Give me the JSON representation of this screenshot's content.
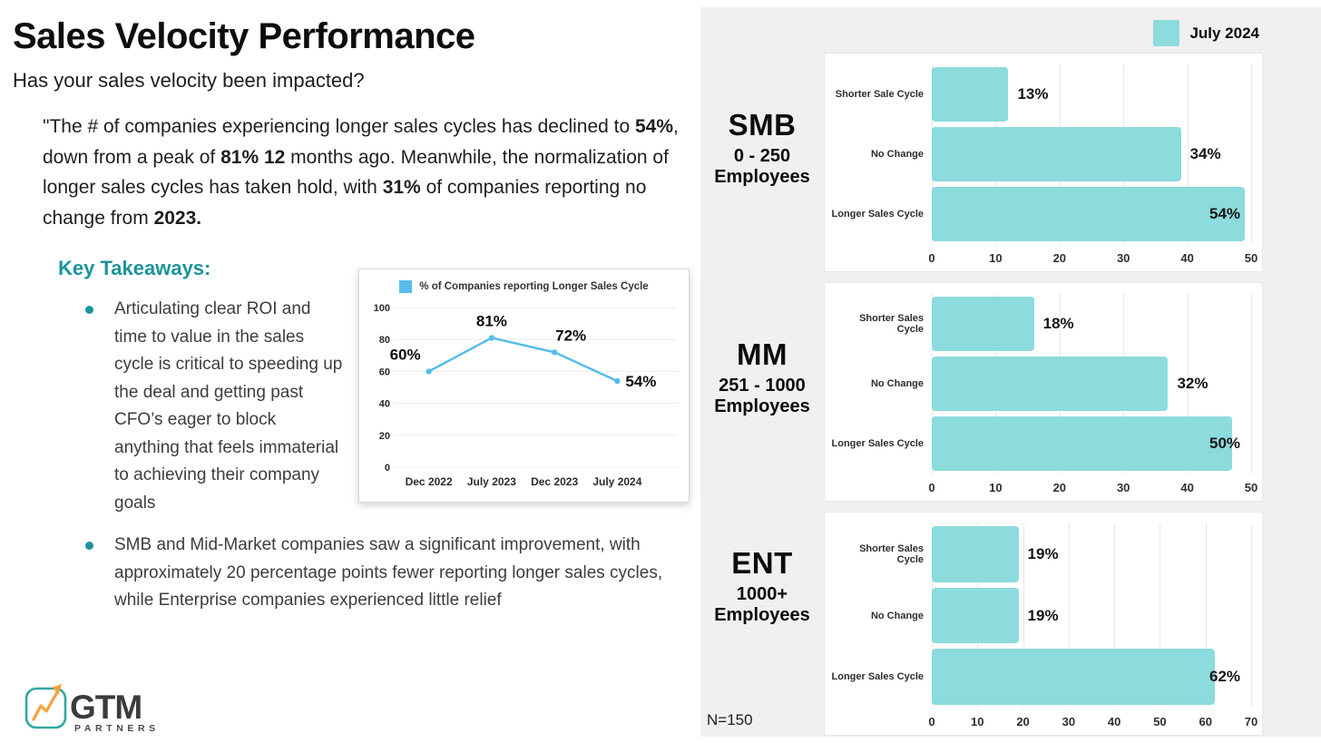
{
  "page": {
    "title": "Sales Velocity Performance",
    "subtitle": "Has your sales velocity been impacted?",
    "quote": {
      "parts": [
        {
          "text": "\"The # of companies experiencing longer sales cycles has declined to ",
          "bold": false
        },
        {
          "text": "54%",
          "bold": true
        },
        {
          "text": ", down from a peak of ",
          "bold": false
        },
        {
          "text": "81% 12",
          "bold": true
        },
        {
          "text": " months ago. Meanwhile, the normalization of longer sales cycles has taken hold, with ",
          "bold": false
        },
        {
          "text": "31%",
          "bold": true
        },
        {
          "text": " of companies reporting no change from ",
          "bold": false
        },
        {
          "text": "2023.",
          "bold": true
        }
      ]
    },
    "key_takeaways": {
      "heading": "Key Takeaways:",
      "bullets": [
        "Articulating clear ROI and time to value in the sales cycle is critical to speeding up the deal and getting past CFO’s eager to block anything that feels immaterial to achieving their company goals",
        "SMB and Mid-Market companies saw a significant improvement, with approximately 20 percentage points fewer reporting longer sales cycles, while Enterprise companies experienced little relief"
      ]
    },
    "legend": {
      "label": "July 2024",
      "color": "#8cdbdd"
    },
    "footnote": "N=150",
    "logo": {
      "brand": "GTM",
      "sub": "PARTNERS",
      "teal": "#2fa8a5",
      "orange": "#f2a33c"
    },
    "colors": {
      "accent_teal": "#1b949b",
      "bar_teal": "#8cdbdd",
      "line_blue": "#56bdeb",
      "panel_gray": "#f0f0ef"
    }
  },
  "chart_data": [
    {
      "id": "trend",
      "type": "line",
      "legend": "% of Companies reporting Longer Sales Cycle",
      "categories": [
        "Dec 2022",
        "July 2023",
        "Dec 2023",
        "July 2024"
      ],
      "values": [
        60,
        81,
        72,
        54
      ],
      "point_labels": [
        "60%",
        "81%",
        "72%",
        "54%"
      ],
      "ylim": [
        0,
        100
      ],
      "yticks": [
        0,
        20,
        40,
        60,
        80,
        100
      ],
      "line_color": "#56bdeb",
      "grid": "horizontal",
      "legend_position": "top"
    },
    {
      "id": "smb",
      "type": "bar",
      "orientation": "horizontal",
      "series": "July 2024",
      "group": {
        "abbr": "SMB",
        "range": "0 - 250",
        "unit": "Employees"
      },
      "categories": [
        "Shorter Sale Cycle",
        "No Change",
        "Longer Sales Cycle"
      ],
      "values": [
        13,
        34,
        54
      ],
      "value_labels": [
        "13%",
        "34%",
        "54%"
      ],
      "bar_extents": [
        12,
        39,
        49
      ],
      "xlim": [
        0,
        50
      ],
      "xticks": [
        0,
        10,
        20,
        30,
        40,
        50
      ],
      "bar_color": "#8cdbdd"
    },
    {
      "id": "mm",
      "type": "bar",
      "orientation": "horizontal",
      "series": "July 2024",
      "group": {
        "abbr": "MM",
        "range": "251 - 1000",
        "unit": "Employees"
      },
      "categories": [
        "Shorter Sales Cycle",
        "No Change",
        "Longer Sales Cycle"
      ],
      "values": [
        18,
        32,
        50
      ],
      "value_labels": [
        "18%",
        "32%",
        "50%"
      ],
      "bar_extents": [
        16,
        37,
        47
      ],
      "xlim": [
        0,
        50
      ],
      "xticks": [
        0,
        10,
        20,
        30,
        40,
        50
      ],
      "bar_color": "#8cdbdd"
    },
    {
      "id": "ent",
      "type": "bar",
      "orientation": "horizontal",
      "series": "July 2024",
      "group": {
        "abbr": "ENT",
        "range": "1000+",
        "unit": "Employees"
      },
      "categories": [
        "Shorter Sales Cycle",
        "No Change",
        "Longer Sales Cycle"
      ],
      "values": [
        19,
        19,
        62
      ],
      "value_labels": [
        "19%",
        "19%",
        "62%"
      ],
      "bar_extents": [
        19,
        19,
        62
      ],
      "xlim": [
        0,
        70
      ],
      "xticks": [
        0,
        10,
        20,
        30,
        40,
        50,
        60,
        70
      ],
      "bar_color": "#8cdbdd"
    }
  ]
}
